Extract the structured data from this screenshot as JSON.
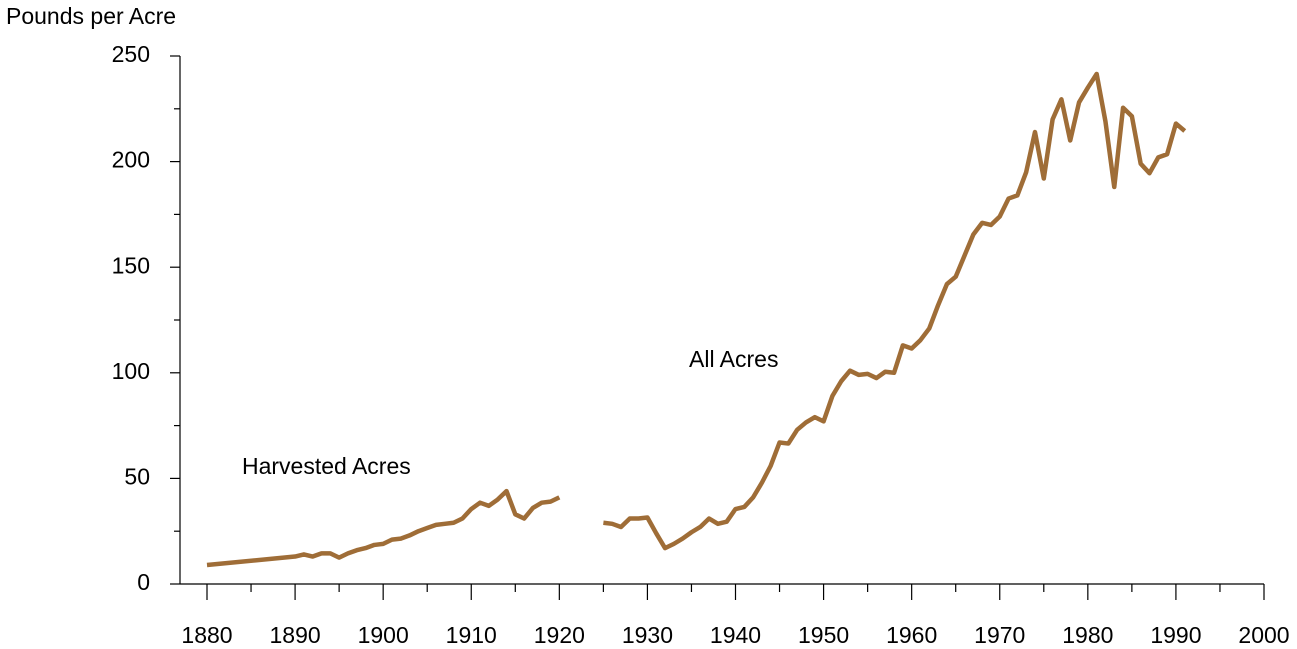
{
  "chart_data": {
    "type": "line",
    "y_label": "Pounds per Acre",
    "annotations": [
      "Harvested Acres",
      "All Acres"
    ],
    "x": [
      1880,
      1890,
      1891,
      1892,
      1893,
      1894,
      1895,
      1896,
      1897,
      1898,
      1899,
      1900,
      1901,
      1902,
      1903,
      1904,
      1905,
      1906,
      1907,
      1908,
      1909,
      1910,
      1911,
      1912,
      1913,
      1914,
      1915,
      1916,
      1917,
      1918,
      1919,
      1920,
      1921,
      1925,
      1926,
      1927,
      1928,
      1929,
      1930,
      1931,
      1932,
      1933,
      1934,
      1935,
      1936,
      1937,
      1938,
      1939,
      1940,
      1941,
      1942,
      1943,
      1944,
      1945,
      1946,
      1947,
      1948,
      1949,
      1950,
      1951,
      1952,
      1953,
      1954,
      1955,
      1956,
      1957,
      1958,
      1959,
      1960,
      1961,
      1962,
      1963,
      1964,
      1965,
      1966,
      1967,
      1968,
      1969,
      1970,
      1971,
      1972,
      1973,
      1974,
      1975,
      1976,
      1977,
      1978,
      1979,
      1980,
      1981,
      1982,
      1983,
      1984,
      1985,
      1986,
      1987,
      1988,
      1989,
      1990,
      1991
    ],
    "series": [
      {
        "color": "#9f6d37",
        "values": [
          9,
          13,
          14,
          13,
          14.5,
          14.5,
          12.5,
          14.5,
          16,
          17,
          18.5,
          19,
          21,
          21.5,
          23,
          25,
          26.5,
          28,
          28.5,
          29,
          31,
          35.5,
          38.5,
          37,
          40,
          44,
          33,
          31,
          36,
          38.5,
          39,
          41,
          null,
          29,
          28.5,
          27,
          31,
          31,
          31.5,
          24,
          17,
          19,
          21.5,
          24.5,
          27,
          31,
          28.5,
          29.5,
          35.5,
          36.5,
          41,
          48,
          56,
          67,
          66.5,
          73,
          76.5,
          79,
          77,
          89,
          96,
          101,
          99,
          99.5,
          97.5,
          100.5,
          100,
          113,
          111.5,
          115.5,
          121,
          132,
          142,
          145.5,
          155.5,
          165.5,
          171,
          170,
          174,
          182.5,
          184,
          195,
          214,
          192,
          220,
          229.5,
          210,
          228,
          235,
          241.5,
          219,
          188,
          225.5,
          221.5,
          199,
          194.5,
          202,
          203.5,
          218,
          214.5
        ]
      }
    ],
    "xlim": [
      1880,
      2000
    ],
    "xticks": [
      1880,
      1890,
      1900,
      1910,
      1920,
      1930,
      1940,
      1950,
      1960,
      1970,
      1980,
      1990,
      2000
    ],
    "x_minor_ticks": [
      1885,
      1895,
      1905,
      1915,
      1925,
      1935,
      1945,
      1955,
      1965,
      1975,
      1985,
      1995
    ],
    "ylim": [
      0,
      250
    ],
    "yticks": [
      0,
      50,
      100,
      150,
      200,
      250
    ],
    "y_minor_ticks": [
      25,
      75,
      125,
      175,
      225
    ]
  }
}
